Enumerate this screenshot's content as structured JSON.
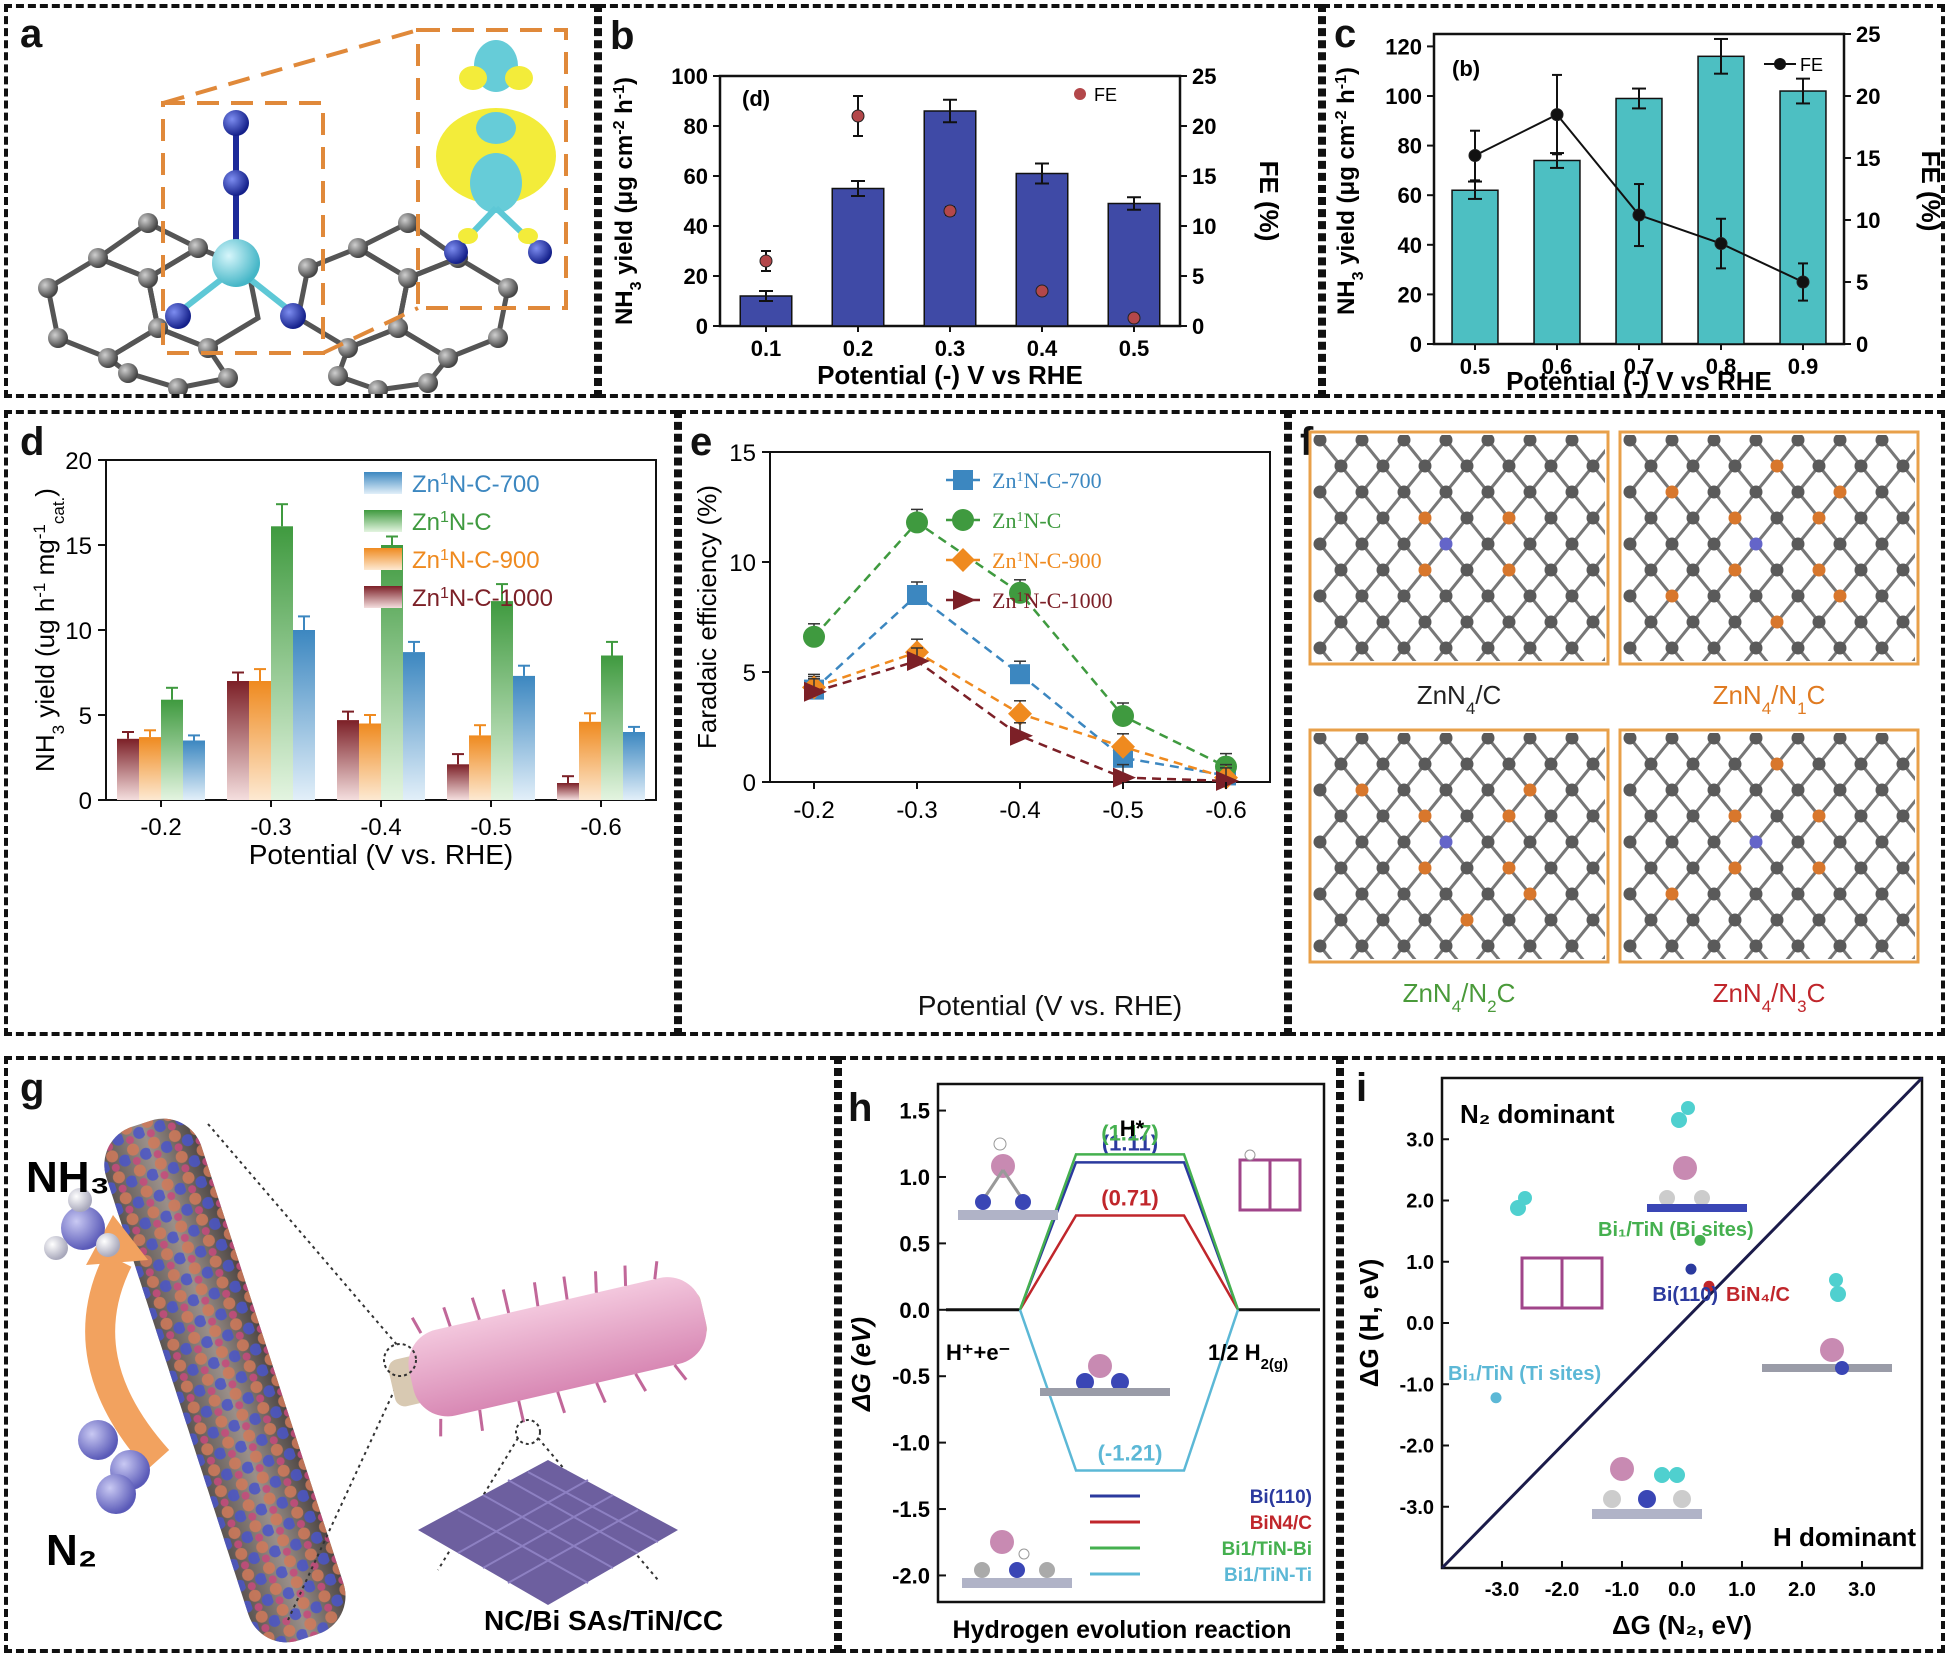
{
  "figure": {
    "panel_labels": [
      "a",
      "b",
      "c",
      "d",
      "e",
      "f",
      "g",
      "h",
      "i"
    ]
  },
  "colors": {
    "navy_bar": "#3f4aa6",
    "teal_bar": "#4dbfc2",
    "fe_marker_b": "#b3474a",
    "zn700": "#3c87c0",
    "znNC": "#3f9a3f",
    "zn900": "#ef8a1f",
    "zn1000": "#7c2027",
    "orange_frame": "#e8a04a",
    "bi110": "#2b3a9e",
    "bin4c": "#c0262b",
    "bitinbi": "#45b04f",
    "bitinti": "#5cb8d6"
  },
  "panel_b": {
    "chart_data": {
      "type": "bar",
      "inner_label": "(d)",
      "categories": [
        "0.1",
        "0.2",
        "0.3",
        "0.4",
        "0.5"
      ],
      "values": [
        12,
        55,
        86,
        61,
        49
      ],
      "errors": [
        2,
        3,
        4.5,
        4,
        2.5
      ],
      "fe_values": [
        6.5,
        21,
        11.5,
        3.5,
        0.8
      ],
      "fe_errors": [
        1,
        2,
        0.4,
        0.3,
        0.2
      ],
      "xlabel": "Potential (-) V vs RHE",
      "ylabel": "NH3 yield (μg cm-2 h-1)",
      "y2label": "FE (%)",
      "ylim": [
        0,
        100
      ],
      "y2lim": [
        0,
        25
      ],
      "yticks": [
        "0",
        "20",
        "40",
        "60",
        "80",
        "100"
      ],
      "y2ticks": [
        "0",
        "5",
        "10",
        "15",
        "20",
        "25"
      ],
      "legend": "FE"
    }
  },
  "panel_c": {
    "chart_data": {
      "type": "bar",
      "inner_label": "(b)",
      "categories": [
        "0.5",
        "0.6",
        "0.7",
        "0.8",
        "0.9"
      ],
      "values": [
        62,
        74,
        99,
        116,
        102
      ],
      "errors": [
        3.5,
        3,
        4,
        7,
        5
      ],
      "fe_values": [
        15.2,
        18.5,
        10.4,
        8.1,
        5
      ],
      "fe_errors": [
        2,
        3.2,
        2.5,
        2,
        1.5
      ],
      "xlabel": "Potential (-) V vs RHE",
      "ylabel": "NH3 yield (μg cm-2 h-1)",
      "y2label": "FE (%)",
      "ylim": [
        0,
        125
      ],
      "y2lim": [
        0,
        25
      ],
      "yticks": [
        "0",
        "20",
        "40",
        "60",
        "80",
        "100",
        "120"
      ],
      "y2ticks": [
        "0",
        "5",
        "10",
        "15",
        "20",
        "25"
      ],
      "legend": "FE"
    }
  },
  "panel_d": {
    "chart_data": {
      "type": "bar",
      "categories": [
        "-0.2",
        "-0.3",
        "-0.4",
        "-0.5",
        "-0.6"
      ],
      "series": [
        {
          "name": "Zn1N-C-1000",
          "values": [
            3.6,
            7.0,
            4.7,
            2.1,
            1.0
          ],
          "errors": [
            0.4,
            0.5,
            0.5,
            0.6,
            0.4
          ]
        },
        {
          "name": "Zn1N-C-900",
          "values": [
            3.7,
            7.0,
            4.5,
            3.8,
            4.6
          ],
          "errors": [
            0.4,
            0.7,
            0.5,
            0.6,
            0.5
          ]
        },
        {
          "name": "Zn1N-C",
          "values": [
            5.9,
            16.1,
            15.0,
            11.7,
            8.5
          ],
          "errors": [
            0.7,
            1.3,
            0.5,
            1.0,
            0.8
          ]
        },
        {
          "name": "Zn1N-C-700",
          "values": [
            3.5,
            10.0,
            8.7,
            7.3,
            4.0
          ],
          "errors": [
            0.3,
            0.8,
            0.6,
            0.6,
            0.3
          ]
        }
      ],
      "legend_entries": [
        {
          "pre": "Zn",
          "sup": "1",
          "post": "N-C-700"
        },
        {
          "pre": "Zn",
          "sup": "1",
          "post": "N-C"
        },
        {
          "pre": "Zn",
          "sup": "1",
          "post": "N-C-900"
        },
        {
          "pre": "Zn",
          "sup": "1",
          "post": "N-C-1000"
        }
      ],
      "xlabel": "Potential (V vs. RHE)",
      "ylabel": "NH3 yield (ug h-1 mgcat.-1)",
      "ylim": [
        0,
        20
      ],
      "yticks": [
        "0",
        "5",
        "10",
        "15",
        "20"
      ]
    }
  },
  "panel_e": {
    "chart_data": {
      "type": "line",
      "x": [
        "-0.2",
        "-0.3",
        "-0.4",
        "-0.5",
        "-0.6"
      ],
      "series": [
        {
          "name": "Zn1N-C-700",
          "values": [
            4.2,
            8.5,
            4.9,
            1.1,
            0.3
          ],
          "marker": "square"
        },
        {
          "name": "Zn1N-C",
          "values": [
            6.6,
            11.8,
            8.6,
            3.0,
            0.7
          ],
          "marker": "circle"
        },
        {
          "name": "Zn1N-C-900",
          "values": [
            4.3,
            5.9,
            3.1,
            1.6,
            0.2
          ],
          "marker": "diamond"
        },
        {
          "name": "Zn1N-C-1000",
          "values": [
            4.1,
            5.5,
            2.1,
            0.2,
            0.05
          ],
          "marker": "triangle"
        }
      ],
      "legend_entries": [
        {
          "pre": "Zn",
          "sup": "1",
          "post": "N-C-700"
        },
        {
          "pre": "Zn",
          "sup": "1",
          "post": "N-C"
        },
        {
          "pre": "Zn",
          "sup": "1",
          "post": "N-C-900"
        },
        {
          "pre": "Zn",
          "sup": "1",
          "post": "N-C-1000"
        }
      ],
      "xlabel": "Potential (V vs. RHE)",
      "ylabel": "Faradaic efficiency (%)",
      "ylim": [
        0,
        15
      ],
      "yticks": [
        "0",
        "5",
        "10",
        "15"
      ]
    }
  },
  "panel_f": {
    "structures": [
      {
        "pre": "ZnN",
        "sub1": "4",
        "mid": "/C",
        "sub2": "",
        "post": "",
        "color": "#222222"
      },
      {
        "pre": "ZnN",
        "sub1": "4",
        "mid": "/N",
        "sub2": "1",
        "post": "C",
        "color": "#e07b22"
      },
      {
        "pre": "ZnN",
        "sub1": "4",
        "mid": "/N",
        "sub2": "2",
        "post": "C",
        "color": "#4a9a3a"
      },
      {
        "pre": "ZnN",
        "sub1": "4",
        "mid": "/N",
        "sub2": "3",
        "post": "C",
        "color": "#c0262b"
      }
    ]
  },
  "panel_g": {
    "nh3": "NH₃",
    "n2": "N₂",
    "caption": "NC/Bi SAs/TiN/CC"
  },
  "panel_h": {
    "chart_data": {
      "type": "line",
      "title": "Hydrogen evolution reaction",
      "top_label": "H*",
      "left_state": "H⁺+e⁻",
      "right_state_pre": "1/2 H",
      "right_state_sub": "2(g)",
      "ylabel": "ΔG (eV)",
      "ylim": [
        -2.2,
        1.7
      ],
      "yticks": [
        "1.5",
        "1.0",
        "0.5",
        "0.0",
        "-0.5",
        "-1.0",
        "-1.5",
        "-2.0"
      ],
      "series": [
        {
          "name": "Bi(110)",
          "value": 1.11,
          "label": "(1.11)"
        },
        {
          "name": "BiN4/C",
          "value": 0.71,
          "label": "(0.71)"
        },
        {
          "name": "Bi1/TiN-Bi",
          "value": 1.17,
          "label": "(1.17)"
        },
        {
          "name": "Bi1/TiN-Ti",
          "value": -1.21,
          "label": "(-1.21)"
        }
      ],
      "legend": [
        "Bi(110)",
        "BiN4/C",
        "Bi1/TiN-Bi",
        "Bi1/TiN-Ti"
      ]
    }
  },
  "panel_i": {
    "chart_data": {
      "type": "scatter",
      "xlabel": "ΔG (N₂, eV)",
      "ylabel": "ΔG (H, eV)",
      "xticks": [
        "-3.0",
        "-2.0",
        "-1.0",
        "0.0",
        "1.0",
        "2.0",
        "3.0"
      ],
      "yticks": [
        "3.0",
        "2.0",
        "1.0",
        "0.0",
        "-1.0",
        "-2.0",
        "-3.0"
      ],
      "xlim": [
        -4,
        4
      ],
      "ylim": [
        -4,
        4
      ],
      "regions": [
        "N₂ dominant",
        "H dominant"
      ],
      "points": [
        {
          "name": "Bi1/TiN (Bi sites)",
          "x": 0.3,
          "y": 1.35
        },
        {
          "name": "Bi(110)",
          "x": 0.15,
          "y": 0.88
        },
        {
          "name": "BiN4/C",
          "x": 0.45,
          "y": 0.6
        },
        {
          "name": "Bi1/TiN (Ti sites)",
          "x": -3.1,
          "y": -1.22
        }
      ],
      "labels": {
        "bitin_bi": "Bi₁/TiN (Bi sites)",
        "bi110": "Bi(110)",
        "bin4c": "BiN₄/C",
        "bitin_ti": "Bi₁/TiN (Ti sites)"
      }
    }
  }
}
